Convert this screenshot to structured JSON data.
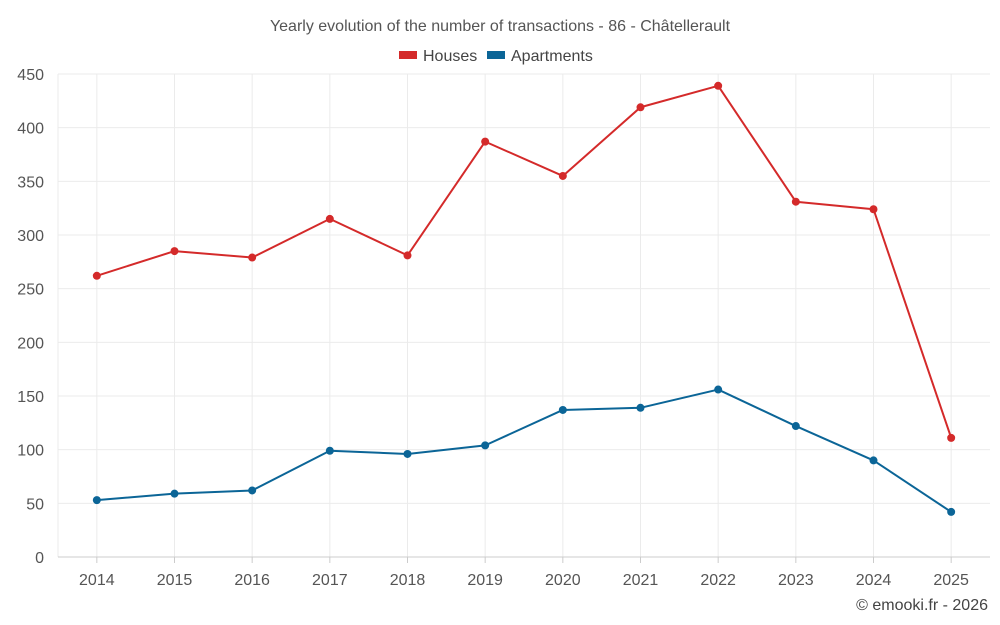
{
  "chart_data": {
    "type": "line",
    "title": "Yearly evolution of the number of transactions - 86 - Châtellerault",
    "categories": [
      "2014",
      "2015",
      "2016",
      "2017",
      "2018",
      "2019",
      "2020",
      "2021",
      "2022",
      "2023",
      "2024",
      "2025"
    ],
    "series": [
      {
        "name": "Houses",
        "color": "#d42a2a",
        "values": [
          262,
          285,
          279,
          315,
          281,
          387,
          355,
          419,
          439,
          331,
          324,
          111
        ]
      },
      {
        "name": "Apartments",
        "color": "#0b6597",
        "values": [
          53,
          59,
          62,
          99,
          96,
          104,
          137,
          139,
          156,
          122,
          90,
          42
        ]
      }
    ],
    "ylim": [
      0,
      450
    ],
    "yticks": [
      "0",
      "50",
      "100",
      "150",
      "200",
      "250",
      "300",
      "350",
      "400",
      "450"
    ],
    "xlabel": "",
    "ylabel": "",
    "grid": true,
    "legend": "top-center"
  },
  "credit": "© emooki.fr - 2026"
}
